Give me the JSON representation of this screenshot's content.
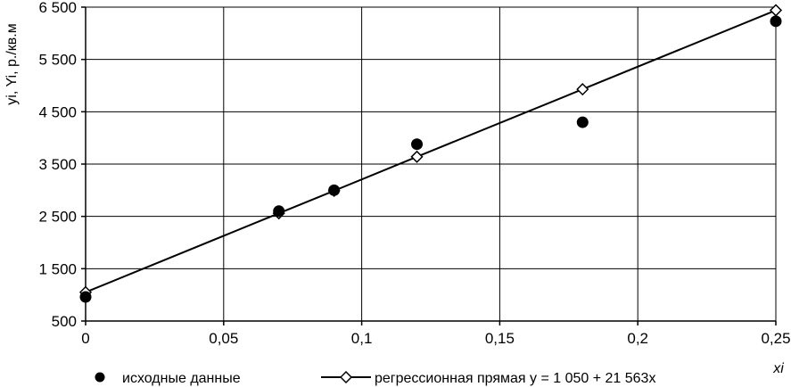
{
  "chart_data": {
    "type": "scatter",
    "ylabel": "yi, Yi, р./кв.м",
    "xlabel": "xi",
    "xlim": [
      0,
      0.25
    ],
    "ylim": [
      500,
      6500
    ],
    "xticks": [
      0,
      0.05,
      0.1,
      0.15,
      0.2,
      0.25
    ],
    "xtick_labels": [
      "0",
      "0,05",
      "0,1",
      "0,15",
      "0,2",
      "0,25"
    ],
    "yticks": [
      500,
      1500,
      2500,
      3500,
      4500,
      5500,
      6500
    ],
    "ytick_labels": [
      "500",
      "1 500",
      "2 500",
      "3 500",
      "4 500",
      "5 500",
      "6 500"
    ],
    "grid": true,
    "legend_position": "bottom",
    "series": [
      {
        "name": "исходные данные",
        "marker": "filled-circle",
        "x": [
          0,
          0.07,
          0.09,
          0.12,
          0.18,
          0.25
        ],
        "y": [
          960,
          2600,
          3000,
          3880,
          4300,
          6230
        ]
      },
      {
        "name": "регрессионная прямая y = 1 050 + 21 563x",
        "marker": "open-diamond",
        "line": true,
        "x": [
          0,
          0.07,
          0.09,
          0.12,
          0.18,
          0.25
        ],
        "y": [
          1050,
          2560,
          2990,
          3640,
          4930,
          6440
        ]
      }
    ]
  },
  "colors": {
    "ink": "#000000",
    "grid": "#000000",
    "background": "#ffffff"
  }
}
